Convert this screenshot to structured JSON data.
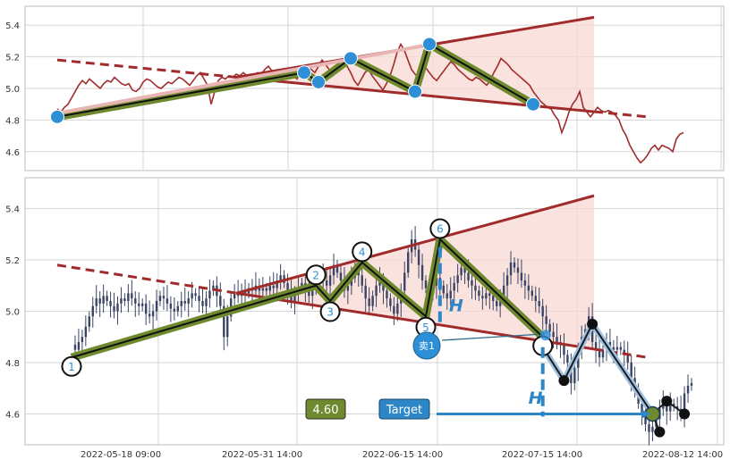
{
  "chart_data": [
    {
      "type": "line",
      "panel": "top",
      "ylim": [
        4.48,
        5.52
      ],
      "y_ticks": [
        "4.6",
        "4.8",
        "5.0",
        "5.2",
        "5.4"
      ],
      "grid": true,
      "series": [
        {
          "color": "#a12b2b",
          "y": [
            4.87,
            4.85,
            4.88,
            4.9,
            4.94,
            4.98,
            5.02,
            5.05,
            5.03,
            5.06,
            5.04,
            5.02,
            5.0,
            5.03,
            5.05,
            5.04,
            5.07,
            5.05,
            5.03,
            5.02,
            5.03,
            4.99,
            4.98,
            5.0,
            5.04,
            5.06,
            5.05,
            5.03,
            5.01,
            5.0,
            5.02,
            5.04,
            5.03,
            5.05,
            5.07,
            5.06,
            5.04,
            5.02,
            5.05,
            5.08,
            5.1,
            5.06,
            5.02,
            4.9,
            4.98,
            5.05,
            5.07,
            5.06,
            5.08,
            5.07,
            5.09,
            5.08,
            5.1,
            5.08,
            5.09,
            5.08,
            5.1,
            5.09,
            5.12,
            5.14,
            5.11,
            5.07,
            5.04,
            5.07,
            5.09,
            5.11,
            5.08,
            5.06,
            5.1,
            5.13,
            5.15,
            5.12,
            5.1,
            5.14,
            5.18,
            5.15,
            5.12,
            5.08,
            5.1,
            5.13,
            5.17,
            5.14,
            5.1,
            5.05,
            5.02,
            5.06,
            5.1,
            5.12,
            5.08,
            5.05,
            5.02,
            4.99,
            5.03,
            5.08,
            5.15,
            5.23,
            5.28,
            5.24,
            5.18,
            5.12,
            5.09,
            5.07,
            5.1,
            5.13,
            5.1,
            5.07,
            5.05,
            5.08,
            5.11,
            5.14,
            5.17,
            5.15,
            5.12,
            5.1,
            5.08,
            5.06,
            5.05,
            5.07,
            5.06,
            5.04,
            5.02,
            5.05,
            5.1,
            5.14,
            5.19,
            5.17,
            5.15,
            5.12,
            5.1,
            5.08,
            5.06,
            5.04,
            5.02,
            4.98,
            4.95,
            4.92,
            4.9,
            4.88,
            4.87,
            4.83,
            4.8,
            4.72,
            4.78,
            4.85,
            4.9,
            4.93,
            4.98,
            4.88,
            4.85,
            4.82,
            4.85,
            4.88,
            4.86,
            4.85,
            4.86,
            4.85,
            4.83,
            4.8,
            4.74,
            4.7,
            4.64,
            4.6,
            4.56,
            4.53,
            4.55,
            4.58,
            4.62,
            4.64,
            4.61,
            4.64,
            4.63,
            4.62,
            4.6,
            4.68,
            4.71,
            4.72
          ]
        }
      ],
      "pattern_points": [
        {
          "label": "",
          "x": 0,
          "y": 4.82
        },
        {
          "label": "",
          "x": 69,
          "y": 5.1
        },
        {
          "label": "",
          "x": 73,
          "y": 5.04
        },
        {
          "label": "",
          "x": 82,
          "y": 5.19
        },
        {
          "label": "",
          "x": 100,
          "y": 4.98
        },
        {
          "label": "",
          "x": 104,
          "y": 5.28
        },
        {
          "label": "",
          "x": 133,
          "y": 4.9
        }
      ],
      "resistance_line": {
        "x": [
          50,
          150
        ],
        "y": [
          5.07,
          5.45
        ]
      },
      "support_line": {
        "x": [
          0,
          165
        ],
        "y": [
          5.18,
          4.82
        ]
      }
    },
    {
      "type": "candlestick",
      "panel": "bottom",
      "ylim": [
        4.48,
        5.52
      ],
      "y_ticks": [
        "4.6",
        "4.8",
        "5.0",
        "5.2",
        "5.4"
      ],
      "x_tick_labels": [
        "2022-05-18 09:00",
        "2022-05-31 14:00",
        "2022-06-15 14:00",
        "2022-07-15 14:00",
        "2022-08-12 14:00"
      ],
      "grid": true,
      "pattern_points": [
        {
          "label": "1",
          "x": 0,
          "y": 4.82
        },
        {
          "label": "2",
          "x": 69,
          "y": 5.1
        },
        {
          "label": "3",
          "x": 73,
          "y": 5.04
        },
        {
          "label": "4",
          "x": 82,
          "y": 5.19
        },
        {
          "label": "5",
          "x": 100,
          "y": 4.98
        },
        {
          "label": "6",
          "x": 104,
          "y": 5.28
        },
        {
          "label": "",
          "x": 133,
          "y": 4.9
        }
      ],
      "projection_points": [
        {
          "x": 133,
          "y": 4.86
        },
        {
          "x": 139,
          "y": 4.73
        },
        {
          "x": 147,
          "y": 4.95
        },
        {
          "x": 164,
          "y": 4.6
        },
        {
          "x": 166,
          "y": 4.53
        },
        {
          "x": 168,
          "y": 4.65
        },
        {
          "x": 173,
          "y": 4.6
        }
      ],
      "resistance_line": {
        "x": [
          50,
          150
        ],
        "y": [
          5.07,
          5.45
        ]
      },
      "support_line": {
        "x": [
          0,
          165
        ],
        "y": [
          5.18,
          4.82
        ]
      },
      "height_label": "H",
      "sell_label": "卖1",
      "price_label": "4.60",
      "target_label": "Target"
    }
  ],
  "colors": {
    "resistance": "#a12b2b",
    "wave_fill": "#6f8a2e",
    "wave_line": "#111111",
    "point_blue": "#2d8fd5",
    "triangle_fill": "#f8d9d4",
    "candle": "#3a4563",
    "target_arrow": "#2d86c6",
    "projection": "#9fc0e0",
    "grid": "#d6d6d6"
  }
}
